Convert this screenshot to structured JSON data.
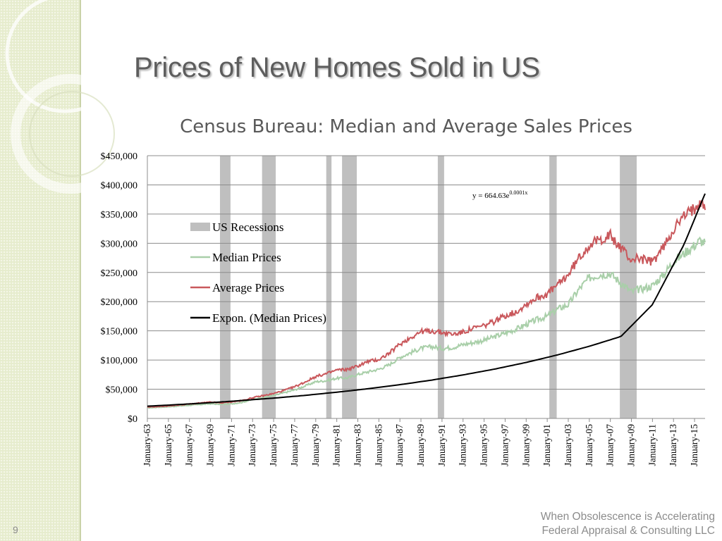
{
  "slide": {
    "title": "Prices of New Homes Sold in US",
    "footer_line1": "When Obsolescence is Accelerating",
    "footer_line2": "Federal Appraisal & Consulting LLC",
    "number": "9"
  },
  "colors": {
    "recession": "#bfbfbf",
    "median": "#a9cfa9",
    "average": "#c9585c",
    "trend": "#000000",
    "sidebar": "#e6eccd"
  },
  "chart_data": {
    "type": "line",
    "title": "Census Bureau: Median and Average Sales Prices",
    "xlabel": "",
    "ylabel": "",
    "x_range": [
      1963.0,
      2016.0
    ],
    "ylim": [
      0,
      450000
    ],
    "y_ticks": [
      0,
      50000,
      100000,
      150000,
      200000,
      250000,
      300000,
      350000,
      400000,
      450000
    ],
    "y_tick_labels": [
      "$0",
      "$50,000",
      "$100,000",
      "$150,000",
      "$200,000",
      "$250,000",
      "$300,000",
      "$350,000",
      "$400,000",
      "$450,000"
    ],
    "x_tick_labels": [
      "January-63",
      "January-65",
      "January-67",
      "January-69",
      "January-71",
      "January-73",
      "January-75",
      "January-77",
      "January-79",
      "January-81",
      "January-83",
      "January-85",
      "January-87",
      "January-89",
      "January-91",
      "January-93",
      "January-95",
      "January-97",
      "January-99",
      "January-01",
      "January-03",
      "January-05",
      "January-07",
      "January-09",
      "January-11",
      "January-13",
      "January-15"
    ],
    "x_tick_years": [
      1963,
      1965,
      1967,
      1969,
      1971,
      1973,
      1975,
      1977,
      1979,
      1981,
      1983,
      1985,
      1987,
      1989,
      1991,
      1993,
      1995,
      1997,
      1999,
      2001,
      2003,
      2005,
      2007,
      2009,
      2011,
      2013,
      2015
    ],
    "grid": true,
    "legend_position": "upper-left inside plot",
    "annotation": {
      "base": "y = 664.63e",
      "exponent": "0.0001x"
    },
    "recessions": [
      {
        "start": 1969.9,
        "end": 1970.9
      },
      {
        "start": 1973.9,
        "end": 1975.2
      },
      {
        "start": 1980.0,
        "end": 1980.5
      },
      {
        "start": 1981.5,
        "end": 1982.9
      },
      {
        "start": 1990.6,
        "end": 1991.2
      },
      {
        "start": 2001.2,
        "end": 2001.9
      },
      {
        "start": 2007.9,
        "end": 2009.5
      }
    ],
    "series": [
      {
        "name": "US Recessions",
        "kind": "band"
      },
      {
        "name": "Median Prices",
        "kind": "line",
        "x": [
          1963,
          1965,
          1967,
          1969,
          1970,
          1971,
          1972,
          1973,
          1974,
          1975,
          1976,
          1977,
          1978,
          1979,
          1980,
          1981,
          1982,
          1983,
          1984,
          1985,
          1986,
          1987,
          1988,
          1989,
          1990,
          1991,
          1992,
          1993,
          1994,
          1995,
          1996,
          1997,
          1998,
          1999,
          2000,
          2001,
          2002,
          2003,
          2004,
          2005,
          2006,
          2007,
          2007.5,
          2008,
          2009,
          2009.5,
          2010,
          2011,
          2012,
          2013,
          2014,
          2015,
          2015.5,
          2016
        ],
        "y": [
          18000,
          20000,
          22500,
          25000,
          24000,
          25000,
          27500,
          32500,
          36000,
          39000,
          44000,
          48800,
          55700,
          62900,
          64600,
          68900,
          69300,
          75300,
          79900,
          84300,
          92000,
          104500,
          112500,
          120000,
          122900,
          120000,
          121500,
          126500,
          130000,
          133900,
          140000,
          146000,
          152500,
          161000,
          169000,
          175000,
          187600,
          195000,
          221000,
          240900,
          246500,
          247900,
          240000,
          232100,
          216700,
          220000,
          221800,
          227200,
          245200,
          268900,
          282800,
          296400,
          305000,
          300000
        ]
      },
      {
        "name": "Average Prices",
        "kind": "line",
        "x": [
          1963,
          1965,
          1967,
          1969,
          1970,
          1971,
          1972,
          1973,
          1974,
          1975,
          1976,
          1977,
          1978,
          1979,
          1980,
          1981,
          1982,
          1983,
          1984,
          1985,
          1986,
          1987,
          1988,
          1989,
          1990,
          1991,
          1992,
          1993,
          1994,
          1995,
          1996,
          1997,
          1998,
          1999,
          2000,
          2001,
          2002,
          2003,
          2004,
          2005,
          2006,
          2007,
          2007.5,
          2008,
          2009,
          2009.5,
          2010,
          2011,
          2012,
          2013,
          2014,
          2015,
          2015.5,
          2016
        ],
        "y": [
          19300,
          21500,
          24600,
          27900,
          26600,
          28300,
          30500,
          35500,
          38900,
          42600,
          48000,
          54200,
          62500,
          71800,
          76400,
          83000,
          83900,
          89800,
          97600,
          100800,
          111900,
          127200,
          138300,
          148800,
          149800,
          147200,
          144100,
          147700,
          154500,
          158700,
          166400,
          176200,
          181900,
          195600,
          207000,
          213200,
          228700,
          246300,
          274500,
          297000,
          305900,
          313600,
          300000,
          292600,
          270900,
          275000,
          272900,
          267900,
          292200,
          324500,
          345800,
          360000,
          375000,
          365000
        ]
      },
      {
        "name": "Expon. (Median Prices)",
        "kind": "trendline",
        "x": [
          1963,
          1966,
          1969,
          1972,
          1975,
          1978,
          1981,
          1984,
          1987,
          1990,
          1993,
          1996,
          1999,
          2002,
          2005,
          2008,
          2011,
          2014,
          2016
        ],
        "y": [
          21000,
          23800,
          27000,
          30700,
          34800,
          39500,
          44900,
          50900,
          57800,
          65600,
          74500,
          84500,
          95900,
          108900,
          123600,
          140300,
          195000,
          298000,
          385000
        ]
      }
    ]
  }
}
